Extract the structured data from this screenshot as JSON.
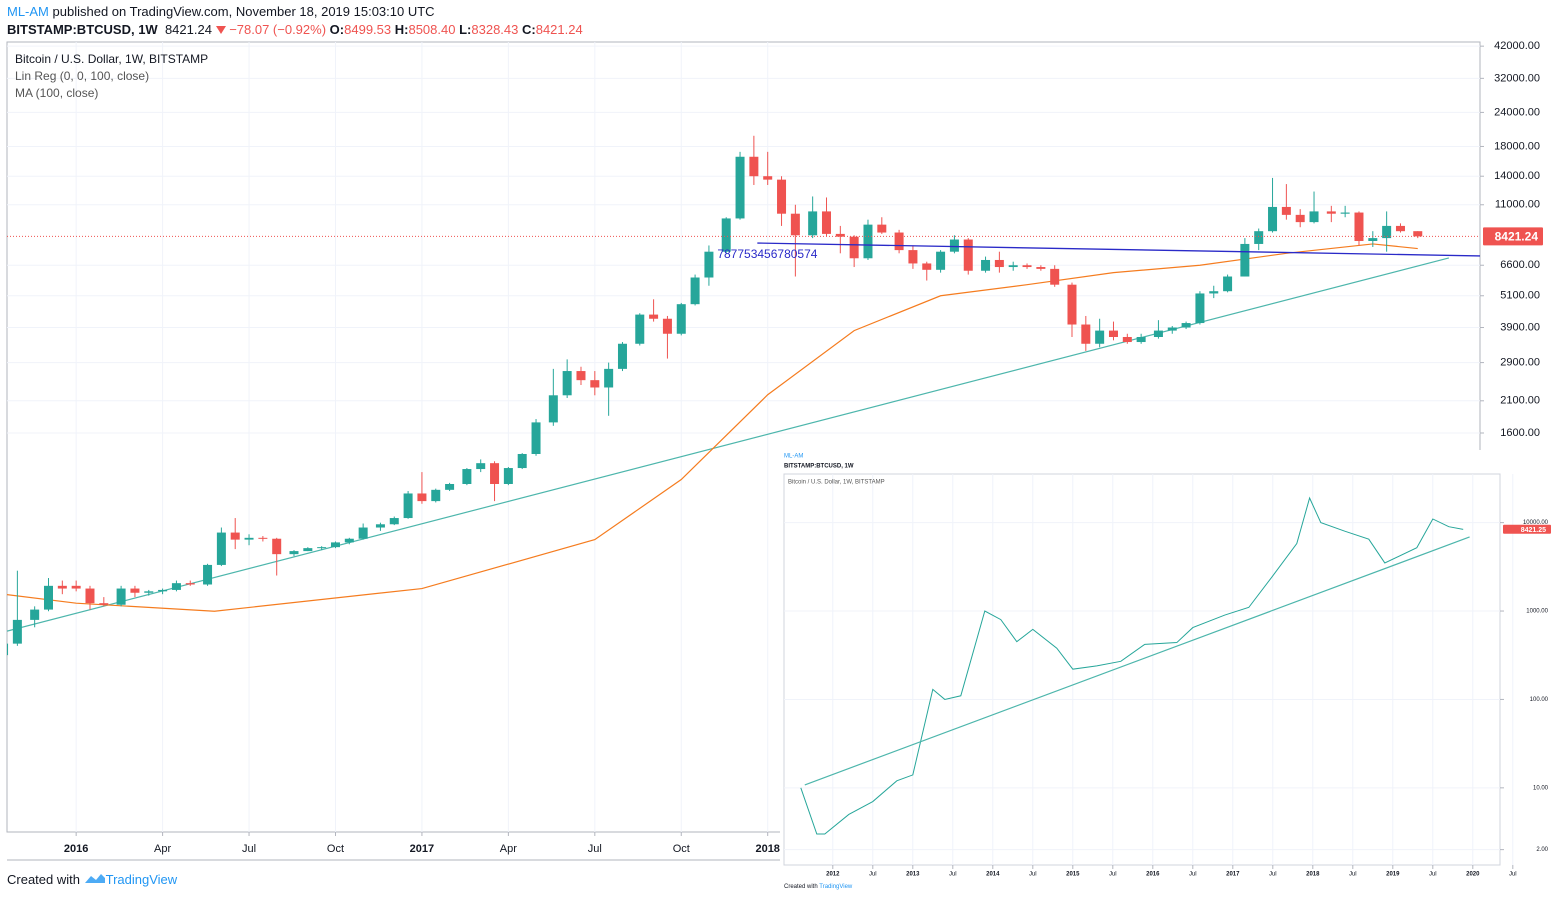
{
  "header": {
    "author": "ML-AM",
    "published": "published on TradingView.com, November 18, 2019 15:03:10 UTC",
    "symbol": "BITSTAMP:BTCUSD, 1W",
    "price": "8421.24",
    "change": "−78.07 (−0.92%)",
    "ohlc": [
      {
        "label": "O:",
        "value": "8499.53"
      },
      {
        "label": "H:",
        "value": "8508.40"
      },
      {
        "label": "L:",
        "value": "8328.43"
      },
      {
        "label": "C:",
        "value": "8421.24"
      }
    ]
  },
  "footer": {
    "text": "Created with",
    "brand": "TradingView"
  },
  "chart_data": [
    {
      "type": "candlestick",
      "title": "Bitcoin / U.S. Dollar, 1W, BITSTAMP",
      "log": true,
      "grid": true,
      "up_color": "#26a69a",
      "down_color": "#ef5350",
      "xlim": [
        2015.8,
        2020.06
      ],
      "ylim": [
        55,
        43500
      ],
      "xticks": [
        2016,
        {
          "value": 2016.25,
          "label": "Apr"
        },
        {
          "value": 2016.5,
          "label": "Jul"
        },
        {
          "value": 2016.75,
          "label": "Oct"
        },
        2017,
        {
          "value": 2017.25,
          "label": "Apr"
        },
        {
          "value": 2017.5,
          "label": "Jul"
        },
        {
          "value": 2017.75,
          "label": "Oct"
        },
        2018
      ],
      "yticks": [
        {
          "value": 42000,
          "label": "42000.00"
        },
        {
          "value": 32000,
          "label": "32000.00"
        },
        {
          "value": 24000,
          "label": "24000.00"
        },
        {
          "value": 18000,
          "label": "18000.00"
        },
        {
          "value": 14000,
          "label": "14000.00"
        },
        {
          "value": 11000,
          "label": "11000.00"
        },
        {
          "value": 6600,
          "label": "6600.00"
        },
        {
          "value": 5100,
          "label": "5100.00"
        },
        {
          "value": 3900,
          "label": "3900.00"
        },
        {
          "value": 2900,
          "label": "2900.00"
        },
        {
          "value": 2100,
          "label": "2100.00"
        },
        {
          "value": 1600,
          "label": "1600.00"
        }
      ],
      "last_price": 8421.24,
      "x": [
        2015.79,
        2015.83,
        2015.88,
        2015.92,
        2015.96,
        2016.0,
        2016.04,
        2016.08,
        2016.13,
        2016.17,
        2016.21,
        2016.25,
        2016.29,
        2016.33,
        2016.38,
        2016.42,
        2016.46,
        2016.5,
        2016.54,
        2016.58,
        2016.63,
        2016.67,
        2016.71,
        2016.75,
        2016.79,
        2016.83,
        2016.88,
        2016.92,
        2016.96,
        2017.0,
        2017.04,
        2017.08,
        2017.13,
        2017.17,
        2017.21,
        2017.25,
        2017.29,
        2017.33,
        2017.38,
        2017.42,
        2017.46,
        2017.5,
        2017.54,
        2017.58,
        2017.63,
        2017.67,
        2017.71,
        2017.75,
        2017.79,
        2017.83,
        2017.88,
        2017.92,
        2017.96,
        2018.0,
        2018.04,
        2018.08,
        2018.13,
        2018.17,
        2018.21,
        2018.25,
        2018.29,
        2018.33,
        2018.38,
        2018.42,
        2018.46,
        2018.5,
        2018.54,
        2018.58,
        2018.63,
        2018.67,
        2018.71,
        2018.75,
        2018.79,
        2018.83,
        2018.88,
        2018.92,
        2018.96,
        2019.0,
        2019.04,
        2019.08,
        2019.13,
        2019.17,
        2019.21,
        2019.25,
        2019.29,
        2019.33,
        2019.38,
        2019.42,
        2019.46,
        2019.5,
        2019.54,
        2019.58,
        2019.63,
        2019.67,
        2019.71,
        2019.75,
        2019.79,
        2019.83,
        2019.88
      ],
      "ohlc": [
        [
          245,
          280,
          240,
          270
        ],
        [
          270,
          500,
          265,
          330
        ],
        [
          330,
          370,
          310,
          360
        ],
        [
          360,
          470,
          355,
          440
        ],
        [
          440,
          460,
          410,
          430
        ],
        [
          440,
          460,
          420,
          430
        ],
        [
          430,
          440,
          360,
          380
        ],
        [
          380,
          400,
          370,
          375
        ],
        [
          375,
          440,
          370,
          430
        ],
        [
          430,
          440,
          400,
          415
        ],
        [
          415,
          425,
          405,
          420
        ],
        [
          420,
          430,
          410,
          425
        ],
        [
          425,
          460,
          420,
          450
        ],
        [
          450,
          460,
          440,
          445
        ],
        [
          445,
          530,
          440,
          525
        ],
        [
          525,
          720,
          520,
          690
        ],
        [
          690,
          780,
          600,
          650
        ],
        [
          650,
          680,
          620,
          660
        ],
        [
          660,
          670,
          640,
          655
        ],
        [
          655,
          660,
          480,
          575
        ],
        [
          575,
          595,
          565,
          590
        ],
        [
          590,
          610,
          590,
          605
        ],
        [
          605,
          615,
          595,
          610
        ],
        [
          610,
          640,
          605,
          635
        ],
        [
          635,
          660,
          625,
          655
        ],
        [
          655,
          745,
          650,
          720
        ],
        [
          720,
          750,
          700,
          740
        ],
        [
          740,
          790,
          735,
          780
        ],
        [
          780,
          980,
          775,
          960
        ],
        [
          960,
          1150,
          880,
          900
        ],
        [
          900,
          1000,
          890,
          990
        ],
        [
          990,
          1050,
          980,
          1040
        ],
        [
          1040,
          1190,
          1030,
          1180
        ],
        [
          1180,
          1280,
          1150,
          1240
        ],
        [
          1240,
          1260,
          900,
          1040
        ],
        [
          1040,
          1200,
          1030,
          1190
        ],
        [
          1190,
          1350,
          1180,
          1340
        ],
        [
          1340,
          1800,
          1320,
          1750
        ],
        [
          1750,
          2750,
          1700,
          2200
        ],
        [
          2200,
          2980,
          2150,
          2700
        ],
        [
          2700,
          2800,
          2400,
          2500
        ],
        [
          2500,
          2700,
          2200,
          2350
        ],
        [
          2350,
          2900,
          1850,
          2750
        ],
        [
          2750,
          3450,
          2700,
          3400
        ],
        [
          3400,
          4400,
          3350,
          4350
        ],
        [
          4350,
          4950,
          4100,
          4200
        ],
        [
          4200,
          4300,
          3000,
          3700
        ],
        [
          3700,
          4800,
          3650,
          4750
        ],
        [
          4750,
          6100,
          4700,
          5950
        ],
        [
          5950,
          7800,
          5550,
          7400
        ],
        [
          7400,
          9900,
          7300,
          9800
        ],
        [
          9800,
          17200,
          9700,
          16500
        ],
        [
          16500,
          19700,
          13000,
          14000
        ],
        [
          14000,
          17200,
          13000,
          13600
        ],
        [
          13600,
          14000,
          9200,
          10200
        ],
        [
          10200,
          11000,
          6000,
          8500
        ],
        [
          8500,
          11800,
          8300,
          10400
        ],
        [
          10400,
          11700,
          8400,
          8600
        ],
        [
          8600,
          9200,
          7300,
          8400
        ],
        [
          8400,
          8500,
          6500,
          7000
        ],
        [
          7000,
          9700,
          6900,
          9300
        ],
        [
          9300,
          9900,
          8600,
          8700
        ],
        [
          8700,
          8900,
          7300,
          7500
        ],
        [
          7500,
          7800,
          6400,
          6700
        ],
        [
          6700,
          6800,
          5800,
          6350
        ],
        [
          6350,
          7500,
          6200,
          7400
        ],
        [
          7400,
          8500,
          7300,
          8200
        ],
        [
          8200,
          8300,
          6100,
          6300
        ],
        [
          6300,
          7100,
          6200,
          6900
        ],
        [
          6900,
          7400,
          6200,
          6500
        ],
        [
          6500,
          6800,
          6300,
          6600
        ],
        [
          6600,
          6700,
          6400,
          6500
        ],
        [
          6500,
          6600,
          6300,
          6400
        ],
        [
          6400,
          6600,
          5500,
          5600
        ],
        [
          5600,
          5700,
          3600,
          4000
        ],
        [
          4000,
          4300,
          3200,
          3400
        ],
        [
          3400,
          4200,
          3300,
          3800
        ],
        [
          3800,
          4100,
          3500,
          3600
        ],
        [
          3600,
          3700,
          3400,
          3450
        ],
        [
          3450,
          3700,
          3400,
          3600
        ],
        [
          3600,
          4150,
          3550,
          3800
        ],
        [
          3800,
          3950,
          3700,
          3900
        ],
        [
          3900,
          4100,
          3850,
          4050
        ],
        [
          4050,
          5300,
          4000,
          5200
        ],
        [
          5200,
          5550,
          5000,
          5300
        ],
        [
          5300,
          6100,
          5250,
          6000
        ],
        [
          6000,
          8300,
          6000,
          7900
        ],
        [
          7900,
          9000,
          7500,
          8800
        ],
        [
          8800,
          13800,
          8700,
          10800
        ],
        [
          10800,
          13100,
          9700,
          10100
        ],
        [
          10100,
          10600,
          9100,
          9500
        ],
        [
          9500,
          12300,
          9400,
          10400
        ],
        [
          10400,
          10900,
          9500,
          10200
        ],
        [
          10200,
          10900,
          9900,
          10300
        ],
        [
          10300,
          10400,
          7800,
          8100
        ],
        [
          8100,
          8800,
          7700,
          8300
        ],
        [
          8300,
          10400,
          7400,
          9200
        ],
        [
          9200,
          9400,
          8700,
          8800
        ],
        [
          8800,
          8800,
          8300,
          8421.24
        ]
      ],
      "series": [
        {
          "name": "Lin Reg (0, 0, 100, close)",
          "color": "#4db6ac",
          "x": [
            2015.8,
            2019.97
          ],
          "values": [
            300,
            7020
          ]
        },
        {
          "name": "MA (100, close)",
          "color": "#f57c1f",
          "x": [
            2015.79,
            2016.0,
            2016.4,
            2017.0,
            2017.5,
            2017.75,
            2018.0,
            2018.25,
            2018.5,
            2018.75,
            2019.0,
            2019.25,
            2019.5,
            2019.75,
            2019.88
          ],
          "values": [
            410,
            380,
            355,
            430,
            650,
            1080,
            2210,
            3800,
            5100,
            5600,
            6200,
            6600,
            7300,
            7900,
            7600
          ]
        }
      ],
      "trendline": {
        "color": "#2a2ac8",
        "x": [
          2017.97,
          2020.06
        ],
        "values": [
          7960,
          7140
        ],
        "label": "787753456780574"
      }
    },
    {
      "type": "line",
      "title": "Bitcoin / U.S. Dollar, 1W, BITSTAMP",
      "header": "BITSTAMP:BTCUSD, 1W",
      "author": "ML-AM",
      "log": true,
      "grid": true,
      "xlim": [
        2011.39,
        2020.34
      ],
      "ylim": [
        1.34,
        35500
      ],
      "xticks": [
        2012,
        {
          "value": 2012.5,
          "label": "Jul"
        },
        2013,
        {
          "value": 2013.5,
          "label": "Jul"
        },
        2014,
        {
          "value": 2014.5,
          "label": "Jul"
        },
        2015,
        {
          "value": 2015.5,
          "label": "Jul"
        },
        2016,
        {
          "value": 2016.5,
          "label": "Jul"
        },
        2017,
        {
          "value": 2017.5,
          "label": "Jul"
        },
        2018,
        {
          "value": 2018.5,
          "label": "Jul"
        },
        2019,
        {
          "value": 2019.5,
          "label": "Jul"
        },
        2020,
        {
          "value": 2020.5,
          "label": "Jul"
        }
      ],
      "yticks": [
        {
          "value": 2,
          "label": "2.00"
        },
        {
          "value": 10,
          "label": "10.00"
        },
        {
          "value": 100,
          "label": "100.00"
        },
        {
          "value": 1000,
          "label": "1000.00"
        },
        {
          "value": 10000,
          "label": "10000.00"
        }
      ],
      "last_price": 8421.25,
      "series": [
        {
          "name": "BTCUSD",
          "color": "#26a69a",
          "x": [
            2011.6,
            2011.8,
            2011.9,
            2012.2,
            2012.5,
            2012.8,
            2013.0,
            2013.25,
            2013.4,
            2013.6,
            2013.9,
            2014.1,
            2014.3,
            2014.5,
            2014.8,
            2015.0,
            2015.3,
            2015.6,
            2015.9,
            2016.3,
            2016.5,
            2016.9,
            2017.2,
            2017.5,
            2017.8,
            2017.96,
            2018.1,
            2018.4,
            2018.7,
            2018.9,
            2019.3,
            2019.5,
            2019.7,
            2019.88
          ],
          "values": [
            10,
            3,
            3,
            5,
            7,
            12,
            14,
            130,
            100,
            110,
            1000,
            800,
            450,
            620,
            380,
            220,
            240,
            270,
            420,
            440,
            650,
            900,
            1100,
            2500,
            5800,
            19000,
            10000,
            8000,
            6500,
            3500,
            5200,
            11000,
            9000,
            8400
          ]
        },
        {
          "name": "Lin Reg",
          "color": "#4db6ac",
          "x": [
            2011.65,
            2019.96
          ],
          "values": [
            10.8,
            6880
          ]
        }
      ]
    }
  ]
}
